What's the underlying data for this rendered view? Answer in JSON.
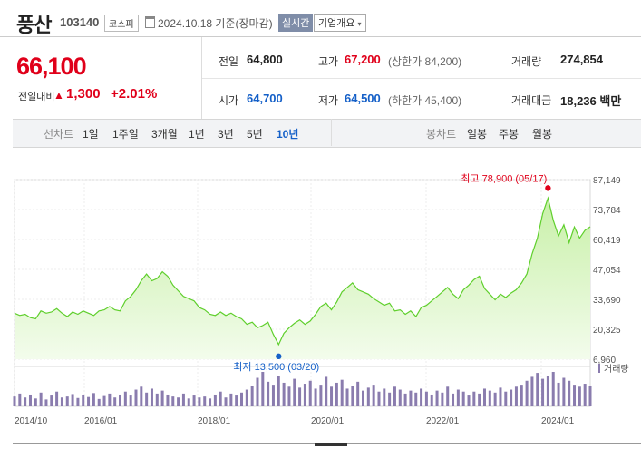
{
  "stock": {
    "name": "풍산",
    "code": "103140",
    "market": "코스피",
    "date": "2024.10.18",
    "basis": "기준(장마감)",
    "realtime": "실시간",
    "company_info": "기업개요",
    "price": "66,100",
    "change_label": "전일대비",
    "change_value": "1,300",
    "change_pct": "+2.01%"
  },
  "stats": {
    "prev_close_label": "전일",
    "prev_close": "64,800",
    "high_label": "고가",
    "high": "67,200",
    "upper_limit": "(상한가 84,200)",
    "volume_label": "거래량",
    "volume": "274,854",
    "open_label": "시가",
    "open": "64,700",
    "low_label": "저가",
    "low": "64,500",
    "lower_limit": "(하한가 45,400)",
    "amount_label": "거래대금",
    "amount": "18,236 백만"
  },
  "tabs": {
    "line_chart_label": "선차트",
    "periods": [
      "1일",
      "1주일",
      "3개월",
      "1년",
      "3년",
      "5년",
      "10년"
    ],
    "active_period": "10년",
    "candle_chart_label": "봉차트",
    "candle_periods": [
      "일봉",
      "주봉",
      "월봉"
    ]
  },
  "colors": {
    "up": "#e0001a",
    "down": "#1560c8",
    "line": "#5fcf2c",
    "area": "#dff7cf",
    "volume": "#8a7cae"
  },
  "chart_data": {
    "type": "area",
    "ylim": [
      6960,
      87149
    ],
    "y_ticks": [
      "87,149",
      "73,784",
      "60,419",
      "47,054",
      "33,690",
      "20,325",
      "6,960"
    ],
    "x_ticks": [
      "2014/10",
      "2016/01",
      "2018/01",
      "2020/01",
      "2022/01",
      "2024/01"
    ],
    "high_annotation": "최고 78,900 (05/17)",
    "low_annotation": "최저 13,500 (03/20)",
    "volume_legend": "거래량",
    "series": [
      {
        "values": [
          27500,
          26500,
          27000,
          25500,
          25000,
          28500,
          27500,
          28000,
          29500,
          27500,
          26000,
          28000,
          27000,
          28500,
          27500,
          26500,
          28500,
          29000,
          30500,
          29000,
          28500,
          33000,
          35000,
          38000,
          42000,
          45000,
          42000,
          43000,
          46000,
          44000,
          40000,
          37500,
          35000,
          34000,
          33000,
          30000,
          29000,
          27000,
          26500,
          28000,
          26500,
          27500,
          26000,
          25000,
          22500,
          23500,
          21000,
          22000,
          23500,
          18000,
          13500,
          18500,
          21000,
          23000,
          24500,
          22500,
          24000,
          27000,
          30500,
          32000,
          29000,
          32500,
          37000,
          39000,
          41000,
          38000,
          37000,
          36000,
          34000,
          32500,
          31000,
          32000,
          28500,
          29000,
          27000,
          28500,
          26000,
          30000,
          31000,
          33000,
          35000,
          37000,
          39000,
          36000,
          34000,
          38000,
          40000,
          42500,
          44000,
          38500,
          36000,
          33500,
          36000,
          34500,
          36500,
          38000,
          41000,
          45000,
          54000,
          61000,
          72000,
          78900,
          69000,
          62000,
          67000,
          59000,
          66000,
          61000,
          64500,
          66100
        ]
      }
    ],
    "volume": [
      20,
      26,
      18,
      24,
      16,
      28,
      14,
      22,
      30,
      18,
      20,
      25,
      17,
      23,
      19,
      27,
      15,
      21,
      26,
      18,
      24,
      30,
      22,
      34,
      40,
      28,
      36,
      26,
      32,
      24,
      20,
      18,
      26,
      16,
      22,
      18,
      20,
      16,
      24,
      30,
      18,
      26,
      22,
      28,
      34,
      42,
      58,
      70,
      50,
      44,
      62,
      48,
      40,
      56,
      38,
      46,
      52,
      36,
      44,
      60,
      40,
      48,
      54,
      36,
      42,
      50,
      32,
      38,
      44,
      30,
      36,
      28,
      40,
      34,
      26,
      32,
      28,
      36,
      30,
      24,
      32,
      28,
      40,
      26,
      34,
      30,
      22,
      30,
      26,
      36,
      32,
      28,
      38,
      30,
      34,
      40,
      44,
      52,
      60,
      68,
      56,
      62,
      70,
      48,
      58,
      52,
      44,
      40,
      46,
      42
    ]
  }
}
